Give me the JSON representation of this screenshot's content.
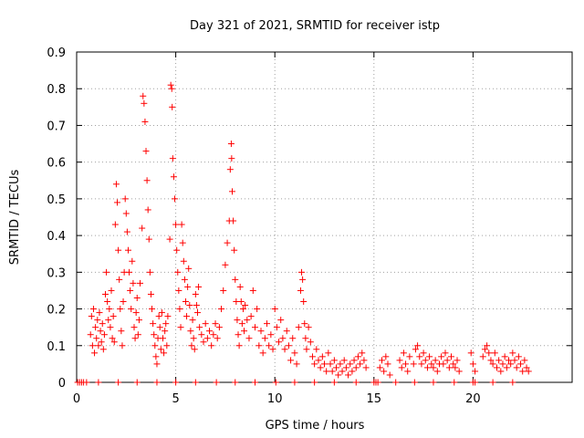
{
  "chart_data": {
    "type": "scatter",
    "title": "Day 321 of 2021, SRMTID for receiver istp",
    "xlabel": "GPS time / hours",
    "ylabel": "SRMTID / TECUs",
    "xlim": [
      0,
      25
    ],
    "ylim": [
      0,
      0.9
    ],
    "xticks": [
      0,
      5,
      10,
      15,
      20
    ],
    "yticks": [
      0,
      0.1,
      0.2,
      0.3,
      0.4,
      0.5,
      0.6,
      0.7,
      0.8,
      0.9
    ],
    "ytick_labels": [
      "0",
      "0.1",
      "0.2",
      "0.3",
      "0.4",
      "0.5",
      "0.6",
      "0.7",
      "0.8",
      "0.9"
    ],
    "grid": true,
    "marker": "+",
    "series": [
      {
        "name": "SRMTID",
        "color": "#ff0000",
        "points": [
          [
            0.05,
            0.0
          ],
          [
            0.15,
            0.0
          ],
          [
            0.25,
            0.0
          ],
          [
            0.35,
            0.0
          ],
          [
            0.5,
            0.0
          ],
          [
            0.7,
            0.13
          ],
          [
            0.75,
            0.18
          ],
          [
            0.8,
            0.1
          ],
          [
            0.85,
            0.2
          ],
          [
            0.9,
            0.08
          ],
          [
            0.95,
            0.15
          ],
          [
            1.0,
            0.12
          ],
          [
            1.05,
            0.17
          ],
          [
            1.1,
            0.1
          ],
          [
            1.15,
            0.19
          ],
          [
            1.2,
            0.14
          ],
          [
            1.25,
            0.11
          ],
          [
            1.3,
            0.16
          ],
          [
            1.35,
            0.09
          ],
          [
            1.4,
            0.13
          ],
          [
            1.45,
            0.24
          ],
          [
            1.5,
            0.3
          ],
          [
            1.55,
            0.22
          ],
          [
            1.6,
            0.17
          ],
          [
            1.65,
            0.2
          ],
          [
            1.7,
            0.15
          ],
          [
            1.75,
            0.25
          ],
          [
            1.8,
            0.12
          ],
          [
            1.85,
            0.18
          ],
          [
            1.9,
            0.11
          ],
          [
            1.95,
            0.43
          ],
          [
            2.0,
            0.54
          ],
          [
            2.05,
            0.49
          ],
          [
            2.1,
            0.36
          ],
          [
            2.15,
            0.28
          ],
          [
            2.2,
            0.2
          ],
          [
            2.25,
            0.14
          ],
          [
            2.3,
            0.1
          ],
          [
            2.35,
            0.22
          ],
          [
            2.4,
            0.3
          ],
          [
            2.45,
            0.5
          ],
          [
            2.5,
            0.46
          ],
          [
            2.55,
            0.41
          ],
          [
            2.6,
            0.36
          ],
          [
            2.65,
            0.3
          ],
          [
            2.7,
            0.25
          ],
          [
            2.75,
            0.2
          ],
          [
            2.8,
            0.33
          ],
          [
            2.85,
            0.27
          ],
          [
            2.9,
            0.15
          ],
          [
            2.95,
            0.12
          ],
          [
            3.0,
            0.19
          ],
          [
            3.05,
            0.23
          ],
          [
            3.1,
            0.13
          ],
          [
            3.15,
            0.17
          ],
          [
            3.2,
            0.27
          ],
          [
            3.3,
            0.42
          ],
          [
            3.35,
            0.78
          ],
          [
            3.4,
            0.76
          ],
          [
            3.45,
            0.71
          ],
          [
            3.5,
            0.63
          ],
          [
            3.55,
            0.55
          ],
          [
            3.6,
            0.47
          ],
          [
            3.65,
            0.39
          ],
          [
            3.7,
            0.3
          ],
          [
            3.75,
            0.24
          ],
          [
            3.8,
            0.2
          ],
          [
            3.85,
            0.16
          ],
          [
            3.9,
            0.13
          ],
          [
            3.95,
            0.1
          ],
          [
            4.0,
            0.07
          ],
          [
            4.05,
            0.05
          ],
          [
            4.1,
            0.12
          ],
          [
            4.15,
            0.18
          ],
          [
            4.2,
            0.15
          ],
          [
            4.25,
            0.09
          ],
          [
            4.3,
            0.19
          ],
          [
            4.35,
            0.12
          ],
          [
            4.4,
            0.08
          ],
          [
            4.45,
            0.14
          ],
          [
            4.5,
            0.16
          ],
          [
            4.55,
            0.1
          ],
          [
            4.6,
            0.18
          ],
          [
            4.7,
            0.39
          ],
          [
            4.75,
            0.81
          ],
          [
            4.8,
            0.8
          ],
          [
            4.82,
            0.75
          ],
          [
            4.85,
            0.61
          ],
          [
            4.9,
            0.56
          ],
          [
            4.95,
            0.5
          ],
          [
            5.0,
            0.43
          ],
          [
            5.05,
            0.36
          ],
          [
            5.1,
            0.3
          ],
          [
            5.15,
            0.25
          ],
          [
            5.2,
            0.2
          ],
          [
            5.25,
            0.15
          ],
          [
            5.3,
            0.43
          ],
          [
            5.35,
            0.38
          ],
          [
            5.4,
            0.33
          ],
          [
            5.45,
            0.28
          ],
          [
            5.5,
            0.22
          ],
          [
            5.55,
            0.18
          ],
          [
            5.6,
            0.26
          ],
          [
            5.65,
            0.31
          ],
          [
            5.7,
            0.21
          ],
          [
            5.75,
            0.14
          ],
          [
            5.8,
            0.1
          ],
          [
            5.85,
            0.17
          ],
          [
            5.9,
            0.12
          ],
          [
            5.95,
            0.09
          ],
          [
            6.0,
            0.24
          ],
          [
            6.05,
            0.21
          ],
          [
            6.1,
            0.19
          ],
          [
            6.15,
            0.26
          ],
          [
            6.2,
            0.15
          ],
          [
            6.3,
            0.13
          ],
          [
            6.4,
            0.11
          ],
          [
            6.5,
            0.16
          ],
          [
            6.6,
            0.12
          ],
          [
            6.7,
            0.14
          ],
          [
            6.8,
            0.1
          ],
          [
            6.9,
            0.13
          ],
          [
            7.0,
            0.16
          ],
          [
            7.1,
            0.12
          ],
          [
            7.2,
            0.15
          ],
          [
            7.3,
            0.2
          ],
          [
            7.4,
            0.25
          ],
          [
            7.5,
            0.32
          ],
          [
            7.6,
            0.38
          ],
          [
            7.7,
            0.44
          ],
          [
            7.75,
            0.58
          ],
          [
            7.8,
            0.65
          ],
          [
            7.82,
            0.61
          ],
          [
            7.85,
            0.52
          ],
          [
            7.9,
            0.44
          ],
          [
            7.95,
            0.36
          ],
          [
            8.0,
            0.28
          ],
          [
            8.05,
            0.22
          ],
          [
            8.1,
            0.17
          ],
          [
            8.15,
            0.13
          ],
          [
            8.2,
            0.1
          ],
          [
            8.25,
            0.26
          ],
          [
            8.3,
            0.22
          ],
          [
            8.35,
            0.16
          ],
          [
            8.4,
            0.2
          ],
          [
            8.45,
            0.14
          ],
          [
            8.5,
            0.21
          ],
          [
            8.6,
            0.17
          ],
          [
            8.7,
            0.12
          ],
          [
            8.8,
            0.18
          ],
          [
            8.9,
            0.25
          ],
          [
            9.0,
            0.15
          ],
          [
            9.1,
            0.2
          ],
          [
            9.2,
            0.1
          ],
          [
            9.3,
            0.14
          ],
          [
            9.4,
            0.08
          ],
          [
            9.5,
            0.12
          ],
          [
            9.6,
            0.16
          ],
          [
            9.7,
            0.1
          ],
          [
            9.8,
            0.13
          ],
          [
            9.9,
            0.09
          ],
          [
            10.0,
            0.2
          ],
          [
            10.1,
            0.15
          ],
          [
            10.2,
            0.11
          ],
          [
            10.3,
            0.17
          ],
          [
            10.4,
            0.12
          ],
          [
            10.5,
            0.09
          ],
          [
            10.6,
            0.14
          ],
          [
            10.7,
            0.1
          ],
          [
            10.8,
            0.06
          ],
          [
            10.9,
            0.12
          ],
          [
            11.0,
            0.08
          ],
          [
            11.1,
            0.05
          ],
          [
            11.2,
            0.15
          ],
          [
            11.3,
            0.25
          ],
          [
            11.35,
            0.3
          ],
          [
            11.4,
            0.28
          ],
          [
            11.45,
            0.22
          ],
          [
            11.5,
            0.16
          ],
          [
            11.55,
            0.12
          ],
          [
            11.6,
            0.09
          ],
          [
            11.7,
            0.15
          ],
          [
            11.8,
            0.11
          ],
          [
            11.9,
            0.07
          ],
          [
            12.0,
            0.05
          ],
          [
            12.1,
            0.09
          ],
          [
            12.2,
            0.06
          ],
          [
            12.3,
            0.04
          ],
          [
            12.4,
            0.07
          ],
          [
            12.5,
            0.05
          ],
          [
            12.6,
            0.03
          ],
          [
            12.7,
            0.08
          ],
          [
            12.8,
            0.05
          ],
          [
            12.9,
            0.03
          ],
          [
            13.0,
            0.06
          ],
          [
            13.1,
            0.04
          ],
          [
            13.2,
            0.02
          ],
          [
            13.3,
            0.05
          ],
          [
            13.4,
            0.03
          ],
          [
            13.5,
            0.06
          ],
          [
            13.6,
            0.04
          ],
          [
            13.7,
            0.02
          ],
          [
            13.8,
            0.05
          ],
          [
            13.9,
            0.03
          ],
          [
            14.0,
            0.06
          ],
          [
            14.1,
            0.04
          ],
          [
            14.2,
            0.07
          ],
          [
            14.3,
            0.05
          ],
          [
            14.4,
            0.08
          ],
          [
            14.5,
            0.06
          ],
          [
            14.6,
            0.04
          ],
          [
            15.3,
            0.04
          ],
          [
            15.4,
            0.06
          ],
          [
            15.5,
            0.03
          ],
          [
            15.6,
            0.07
          ],
          [
            15.7,
            0.05
          ],
          [
            15.8,
            0.02
          ],
          [
            16.3,
            0.06
          ],
          [
            16.4,
            0.04
          ],
          [
            16.5,
            0.08
          ],
          [
            16.6,
            0.05
          ],
          [
            16.7,
            0.03
          ],
          [
            16.8,
            0.07
          ],
          [
            17.0,
            0.05
          ],
          [
            17.1,
            0.09
          ],
          [
            17.2,
            0.1
          ],
          [
            17.3,
            0.07
          ],
          [
            17.4,
            0.05
          ],
          [
            17.5,
            0.08
          ],
          [
            17.6,
            0.06
          ],
          [
            17.7,
            0.04
          ],
          [
            17.8,
            0.07
          ],
          [
            17.9,
            0.05
          ],
          [
            18.0,
            0.04
          ],
          [
            18.1,
            0.06
          ],
          [
            18.2,
            0.03
          ],
          [
            18.3,
            0.05
          ],
          [
            18.4,
            0.07
          ],
          [
            18.5,
            0.05
          ],
          [
            18.6,
            0.08
          ],
          [
            18.7,
            0.06
          ],
          [
            18.8,
            0.04
          ],
          [
            18.9,
            0.07
          ],
          [
            19.0,
            0.05
          ],
          [
            19.1,
            0.04
          ],
          [
            19.2,
            0.06
          ],
          [
            19.3,
            0.03
          ],
          [
            19.9,
            0.08
          ],
          [
            20.0,
            0.05
          ],
          [
            20.1,
            0.03
          ],
          [
            20.5,
            0.07
          ],
          [
            20.6,
            0.09
          ],
          [
            20.7,
            0.1
          ],
          [
            20.8,
            0.08
          ],
          [
            20.9,
            0.06
          ],
          [
            21.0,
            0.05
          ],
          [
            21.1,
            0.08
          ],
          [
            21.2,
            0.04
          ],
          [
            21.3,
            0.06
          ],
          [
            21.4,
            0.03
          ],
          [
            21.5,
            0.05
          ],
          [
            21.6,
            0.07
          ],
          [
            21.7,
            0.04
          ],
          [
            21.8,
            0.06
          ],
          [
            21.9,
            0.05
          ],
          [
            22.0,
            0.08
          ],
          [
            22.1,
            0.06
          ],
          [
            22.2,
            0.04
          ],
          [
            22.3,
            0.07
          ],
          [
            22.4,
            0.05
          ],
          [
            22.5,
            0.03
          ],
          [
            22.6,
            0.06
          ],
          [
            22.7,
            0.04
          ],
          [
            22.8,
            0.03
          ],
          [
            1.1,
            0.0
          ],
          [
            2.1,
            0.0
          ],
          [
            3.05,
            0.0
          ],
          [
            4.05,
            0.0
          ],
          [
            5.0,
            0.0
          ],
          [
            6.0,
            0.0
          ],
          [
            7.05,
            0.0
          ],
          [
            8.0,
            0.0
          ],
          [
            9.0,
            0.0
          ],
          [
            10.05,
            0.0
          ],
          [
            11.0,
            0.0
          ],
          [
            12.0,
            0.0
          ],
          [
            13.0,
            0.0
          ],
          [
            14.1,
            0.0
          ],
          [
            15.0,
            0.0
          ],
          [
            15.1,
            0.0
          ],
          [
            15.2,
            0.0
          ],
          [
            16.1,
            0.0
          ],
          [
            17.05,
            0.0
          ],
          [
            18.0,
            0.0
          ],
          [
            19.05,
            0.0
          ],
          [
            20.0,
            0.0
          ],
          [
            20.1,
            0.0
          ],
          [
            21.0,
            0.0
          ],
          [
            22.0,
            0.0
          ]
        ]
      }
    ]
  }
}
